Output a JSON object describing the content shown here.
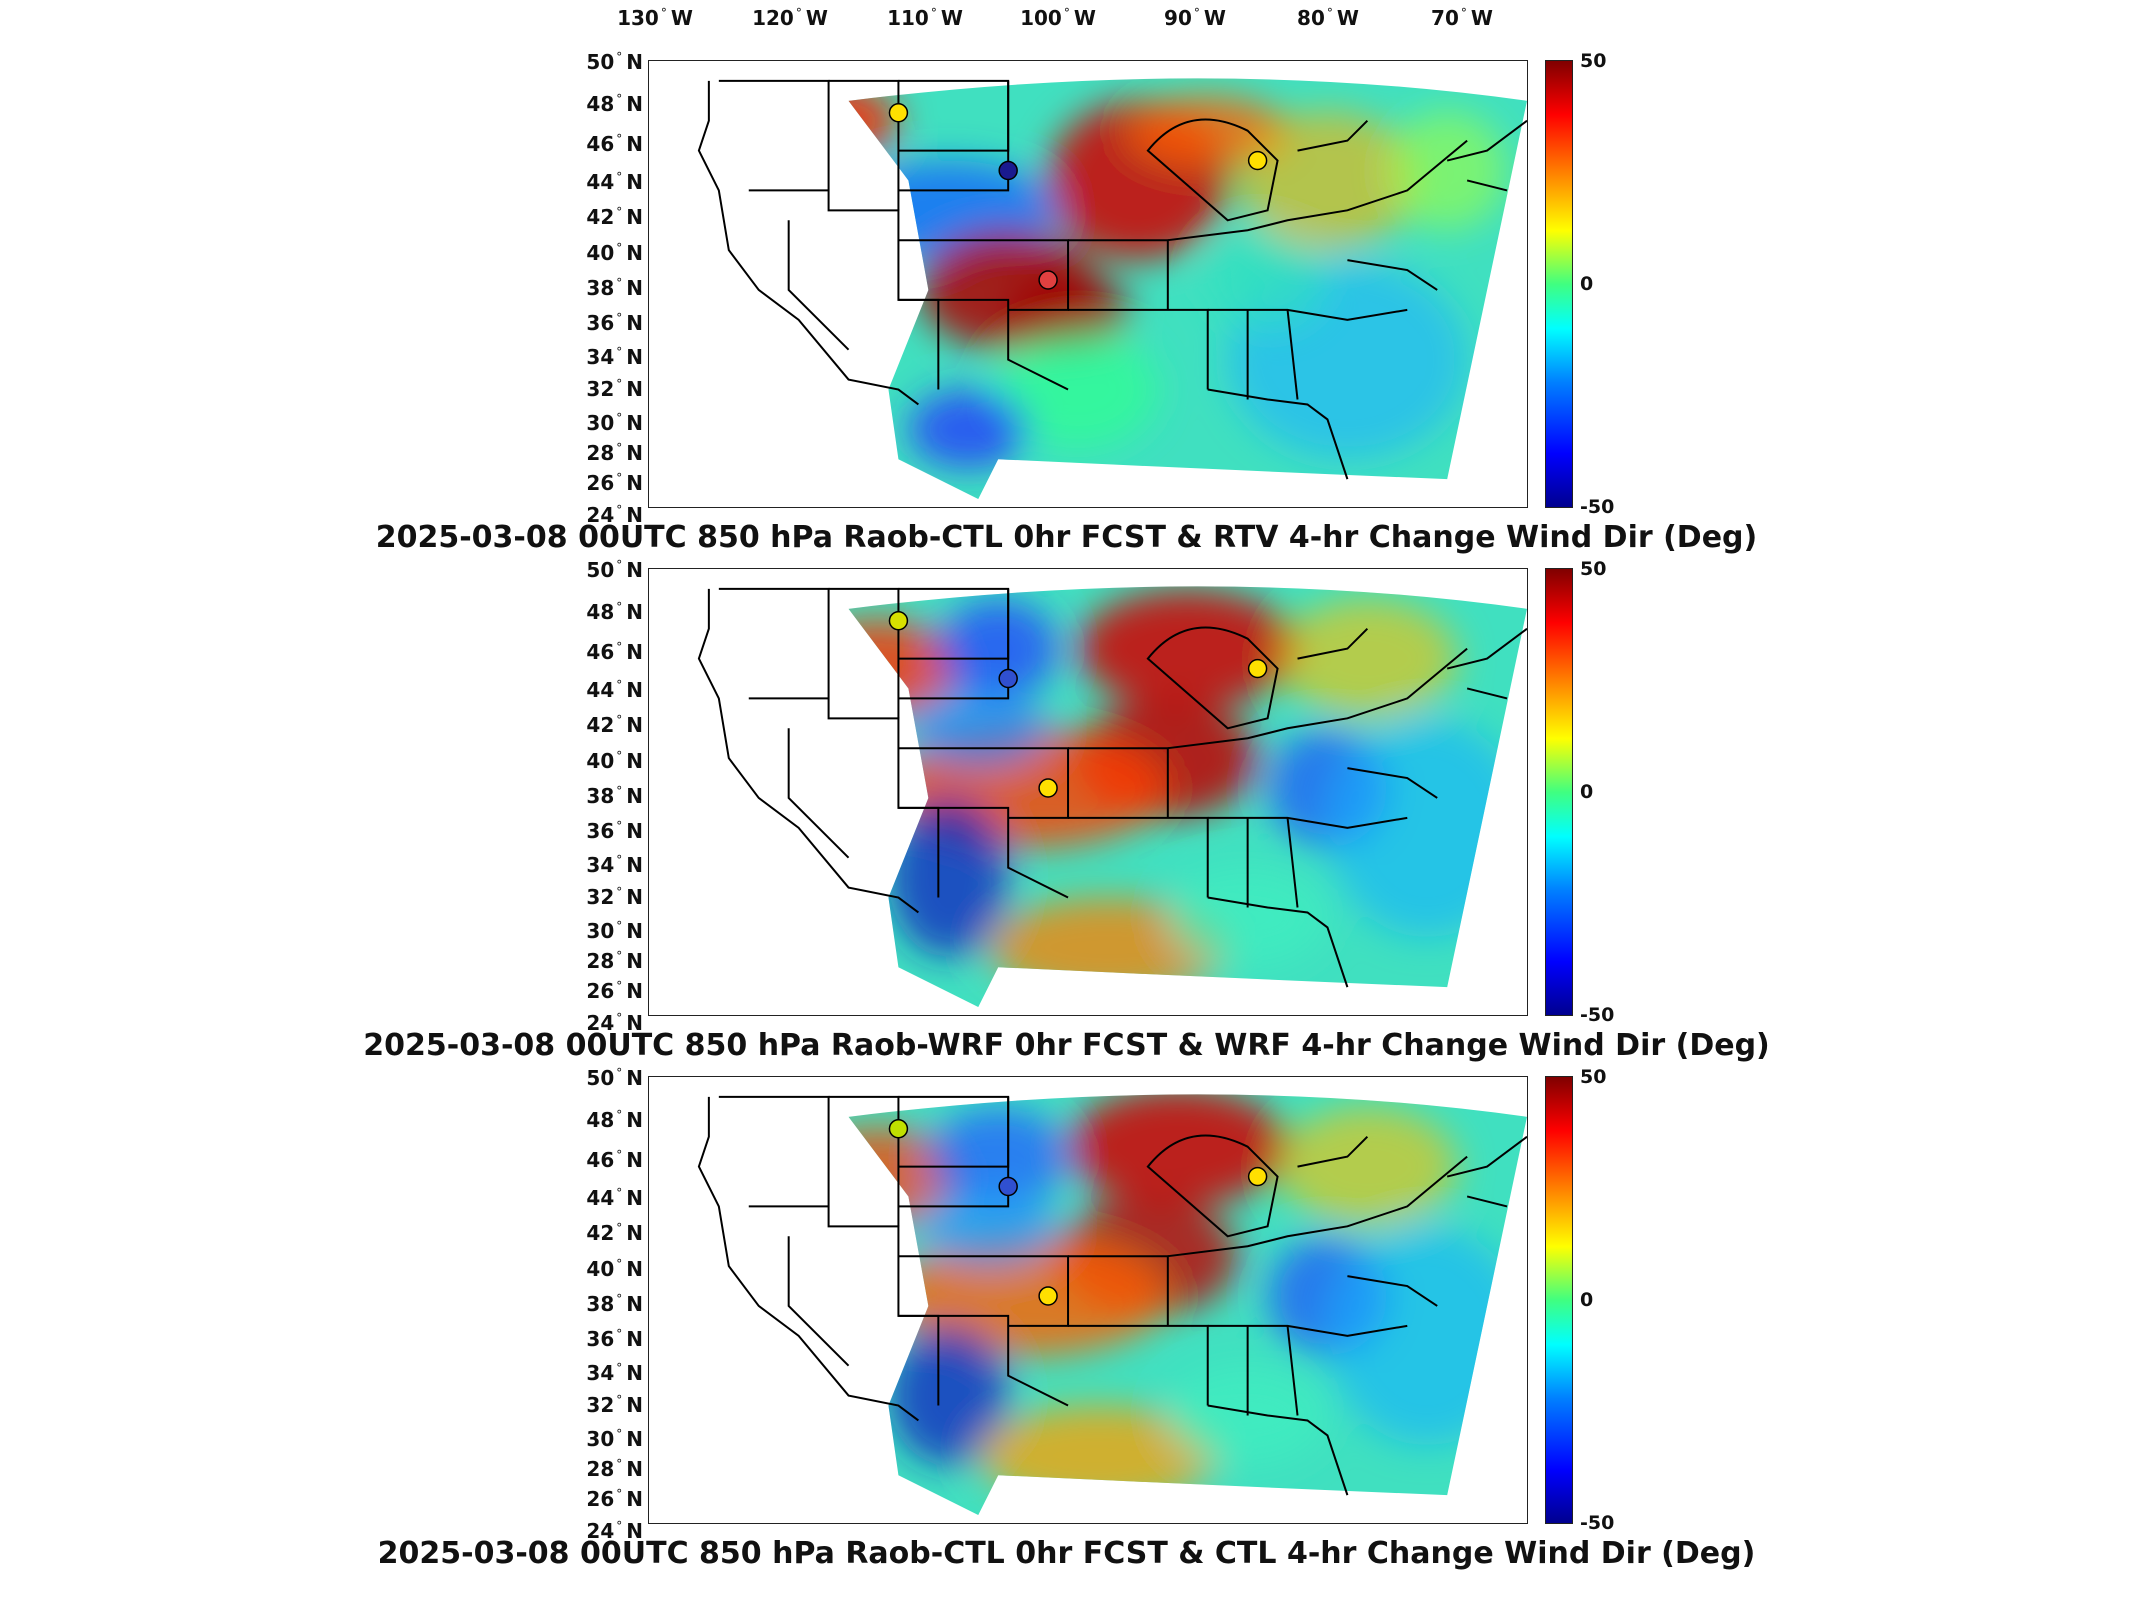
{
  "longitude_labels": [
    "130",
    "120",
    "110",
    "100",
    "90",
    "80",
    "70"
  ],
  "longitude_suffix": "W",
  "latitude_labels": [
    "50",
    "48",
    "46",
    "44",
    "42",
    "40",
    "38",
    "36",
    "34",
    "32",
    "30",
    "28",
    "26",
    "24"
  ],
  "latitude_suffix": "N",
  "degree_symbol": "°",
  "colorbar": {
    "max_label": "50",
    "mid_label": "0",
    "min_label": "-50",
    "colormap": "jet"
  },
  "panels": [
    {
      "title": "2025-03-08 00UTC 850 hPa Raob-CTL 0hr FCST & RTV 4-hr Change Wind Dir (Deg)",
      "raob_markers": [
        {
          "color": "#ffe000"
        },
        {
          "color": "#1a1a8f"
        },
        {
          "color": "#e04040"
        },
        {
          "color": "#ffe000"
        }
      ]
    },
    {
      "title": "2025-03-08 00UTC 850 hPa Raob-WRF 0hr FCST & WRF 4-hr Change Wind Dir (Deg)",
      "raob_markers": [
        {
          "color": "#d8e000"
        },
        {
          "color": "#3050d0"
        },
        {
          "color": "#ffe000"
        },
        {
          "color": "#ffe000"
        }
      ]
    },
    {
      "title": "2025-03-08 00UTC 850 hPa Raob-CTL 0hr FCST & CTL 4-hr Change Wind Dir (Deg)",
      "raob_markers": [
        {
          "color": "#c0e000"
        },
        {
          "color": "#3050d0"
        },
        {
          "color": "#ffe000"
        },
        {
          "color": "#ffe000"
        }
      ]
    }
  ]
}
